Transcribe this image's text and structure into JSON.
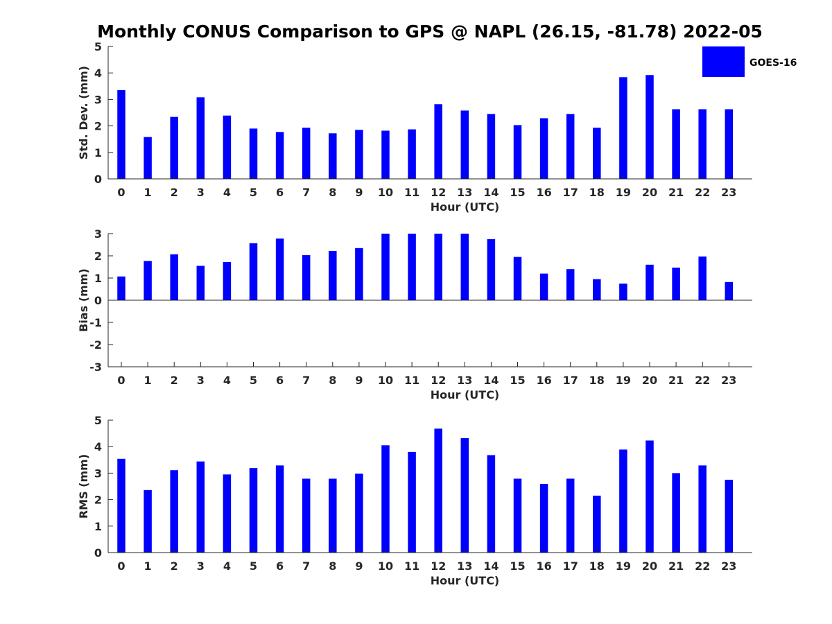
{
  "title": "Monthly CONUS Comparison to GPS @ NAPL (26.15, -81.78) 2022-05",
  "legend": {
    "label": "GOES-16",
    "color": "#0000ff",
    "placement": "top-right"
  },
  "chart_data": [
    {
      "type": "bar",
      "name": "std",
      "ylabel": "Std. Dev. (mm)",
      "xlabel": "Hour (UTC)",
      "ylim": [
        0,
        5
      ],
      "yticks": [
        0,
        1,
        2,
        3,
        4,
        5
      ],
      "grid": false,
      "color": "#0000ff",
      "categories": [
        "0",
        "1",
        "2",
        "3",
        "4",
        "5",
        "6",
        "7",
        "8",
        "9",
        "10",
        "11",
        "12",
        "13",
        "14",
        "15",
        "16",
        "17",
        "18",
        "19",
        "20",
        "21",
        "22",
        "23"
      ],
      "values": [
        3.35,
        1.58,
        2.34,
        3.08,
        2.39,
        1.9,
        1.77,
        1.93,
        1.72,
        1.85,
        1.82,
        1.87,
        2.82,
        2.58,
        2.45,
        2.03,
        2.29,
        2.45,
        1.93,
        3.84,
        3.92,
        2.63,
        2.63,
        2.63
      ]
    },
    {
      "type": "bar",
      "name": "bias",
      "ylabel": "Bias (mm)",
      "xlabel": "Hour (UTC)",
      "ylim": [
        -3,
        3
      ],
      "yticks": [
        -3,
        -2,
        -1,
        0,
        1,
        2,
        3
      ],
      "grid": false,
      "color": "#0000ff",
      "categories": [
        "0",
        "1",
        "2",
        "3",
        "4",
        "5",
        "6",
        "7",
        "8",
        "9",
        "10",
        "11",
        "12",
        "13",
        "14",
        "15",
        "16",
        "17",
        "18",
        "19",
        "20",
        "21",
        "22",
        "23"
      ],
      "values": [
        1.07,
        1.77,
        2.07,
        1.55,
        1.72,
        2.57,
        2.78,
        2.03,
        2.22,
        2.35,
        3.0,
        3.0,
        3.0,
        3.0,
        2.75,
        1.95,
        1.2,
        1.4,
        0.95,
        0.75,
        1.6,
        1.47,
        1.97,
        0.82
      ]
    },
    {
      "type": "bar",
      "name": "rms",
      "ylabel": "RMS (mm)",
      "xlabel": "Hour (UTC)",
      "ylim": [
        0,
        5
      ],
      "yticks": [
        0,
        1,
        2,
        3,
        4,
        5
      ],
      "grid": false,
      "color": "#0000ff",
      "categories": [
        "0",
        "1",
        "2",
        "3",
        "4",
        "5",
        "6",
        "7",
        "8",
        "9",
        "10",
        "11",
        "12",
        "13",
        "14",
        "15",
        "16",
        "17",
        "18",
        "19",
        "20",
        "21",
        "22",
        "23"
      ],
      "values": [
        3.54,
        2.36,
        3.11,
        3.44,
        2.95,
        3.19,
        3.29,
        2.79,
        2.79,
        2.98,
        4.05,
        3.8,
        4.68,
        4.32,
        3.68,
        2.79,
        2.59,
        2.79,
        2.15,
        3.89,
        4.23,
        3.0,
        3.29,
        2.75
      ]
    }
  ]
}
